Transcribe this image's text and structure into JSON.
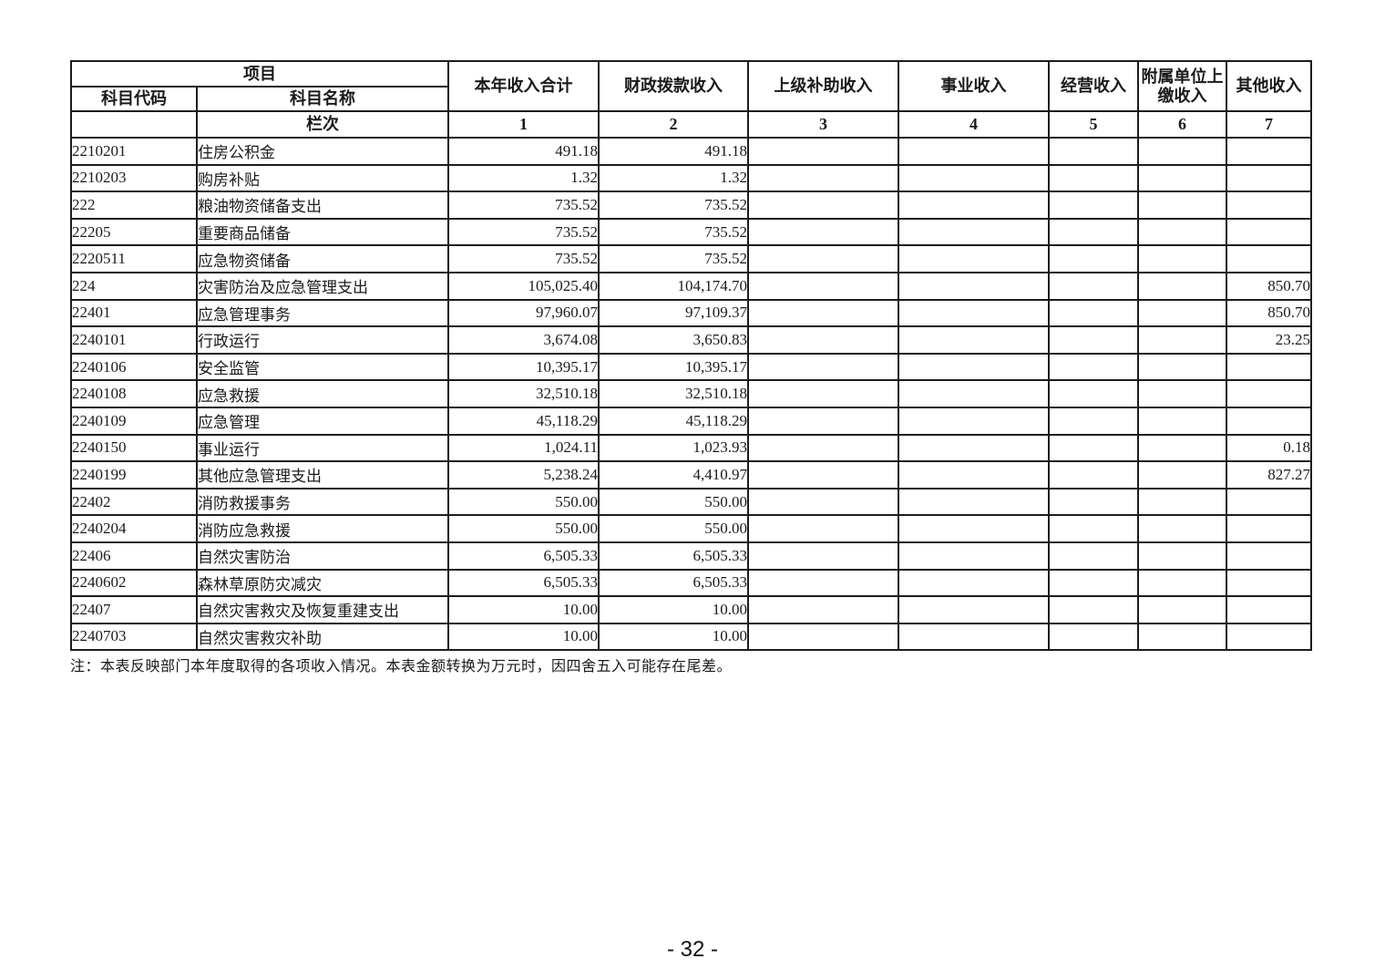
{
  "table": {
    "header": {
      "project_label": "项目",
      "code_label": "科目代码",
      "name_label": "科目名称",
      "row_label": "栏次",
      "columns": [
        {
          "label": "本年收入合计",
          "num": "1"
        },
        {
          "label": "财政拨款收入",
          "num": "2"
        },
        {
          "label": "上级补助收入",
          "num": "3"
        },
        {
          "label": "事业收入",
          "num": "4"
        },
        {
          "label": "经营收入",
          "num": "5"
        },
        {
          "label": "附属单位上缴收入",
          "num": "6"
        },
        {
          "label": "其他收入",
          "num": "7"
        }
      ]
    },
    "rows": [
      {
        "code": "2210201",
        "name": "住房公积金",
        "values": [
          "491.18",
          "491.18",
          "",
          "",
          "",
          "",
          ""
        ]
      },
      {
        "code": "2210203",
        "name": "购房补贴",
        "values": [
          "1.32",
          "1.32",
          "",
          "",
          "",
          "",
          ""
        ]
      },
      {
        "code": "222",
        "name": "粮油物资储备支出",
        "values": [
          "735.52",
          "735.52",
          "",
          "",
          "",
          "",
          ""
        ]
      },
      {
        "code": "22205",
        "name": "重要商品储备",
        "values": [
          "735.52",
          "735.52",
          "",
          "",
          "",
          "",
          ""
        ]
      },
      {
        "code": "2220511",
        "name": "应急物资储备",
        "values": [
          "735.52",
          "735.52",
          "",
          "",
          "",
          "",
          ""
        ]
      },
      {
        "code": "224",
        "name": "灾害防治及应急管理支出",
        "values": [
          "105,025.40",
          "104,174.70",
          "",
          "",
          "",
          "",
          "850.70"
        ]
      },
      {
        "code": "22401",
        "name": "应急管理事务",
        "values": [
          "97,960.07",
          "97,109.37",
          "",
          "",
          "",
          "",
          "850.70"
        ]
      },
      {
        "code": "2240101",
        "name": "行政运行",
        "values": [
          "3,674.08",
          "3,650.83",
          "",
          "",
          "",
          "",
          "23.25"
        ]
      },
      {
        "code": "2240106",
        "name": "安全监管",
        "values": [
          "10,395.17",
          "10,395.17",
          "",
          "",
          "",
          "",
          ""
        ]
      },
      {
        "code": "2240108",
        "name": "应急救援",
        "values": [
          "32,510.18",
          "32,510.18",
          "",
          "",
          "",
          "",
          ""
        ]
      },
      {
        "code": "2240109",
        "name": "应急管理",
        "values": [
          "45,118.29",
          "45,118.29",
          "",
          "",
          "",
          "",
          ""
        ]
      },
      {
        "code": "2240150",
        "name": "事业运行",
        "values": [
          "1,024.11",
          "1,023.93",
          "",
          "",
          "",
          "",
          "0.18"
        ]
      },
      {
        "code": "2240199",
        "name": "其他应急管理支出",
        "values": [
          "5,238.24",
          "4,410.97",
          "",
          "",
          "",
          "",
          "827.27"
        ]
      },
      {
        "code": "22402",
        "name": "消防救援事务",
        "values": [
          "550.00",
          "550.00",
          "",
          "",
          "",
          "",
          ""
        ]
      },
      {
        "code": "2240204",
        "name": "消防应急救援",
        "values": [
          "550.00",
          "550.00",
          "",
          "",
          "",
          "",
          ""
        ]
      },
      {
        "code": "22406",
        "name": "自然灾害防治",
        "values": [
          "6,505.33",
          "6,505.33",
          "",
          "",
          "",
          "",
          ""
        ]
      },
      {
        "code": "2240602",
        "name": "森林草原防灾减灾",
        "values": [
          "6,505.33",
          "6,505.33",
          "",
          "",
          "",
          "",
          ""
        ]
      },
      {
        "code": "22407",
        "name": "自然灾害救灾及恢复重建支出",
        "values": [
          "10.00",
          "10.00",
          "",
          "",
          "",
          "",
          ""
        ]
      },
      {
        "code": "2240703",
        "name": "自然灾害救灾补助",
        "values": [
          "10.00",
          "10.00",
          "",
          "",
          "",
          "",
          ""
        ]
      }
    ]
  },
  "note": "注：本表反映部门本年度取得的各项收入情况。本表金额转换为万元时，因四舍五入可能存在尾差。",
  "page_number": "- 32 -",
  "colors": {
    "border": "#1c1c1c",
    "text": "#1a1a1a",
    "background": "#ffffff"
  }
}
